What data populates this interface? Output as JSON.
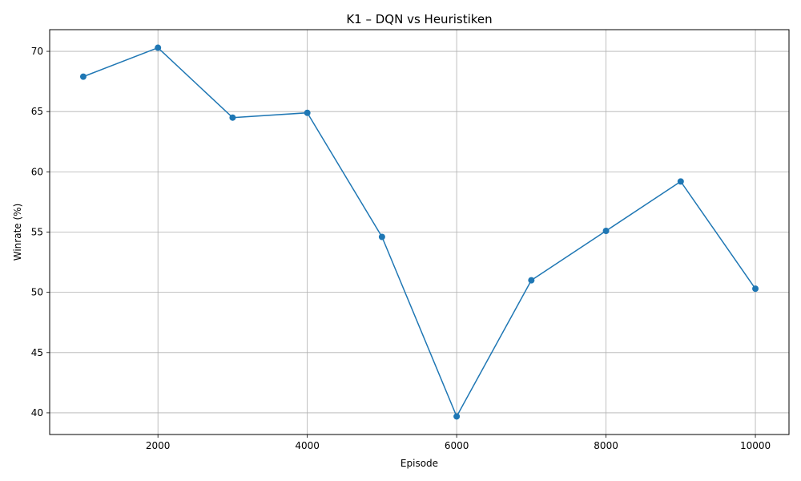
{
  "chart_data": {
    "type": "line",
    "title": "K1 – DQN vs Heuristiken",
    "xlabel": "Episode",
    "ylabel": "Winrate (%)",
    "x": [
      1000,
      2000,
      3000,
      4000,
      5000,
      6000,
      7000,
      8000,
      9000,
      10000
    ],
    "series": [
      {
        "values": [
          67.9,
          70.3,
          64.5,
          64.9,
          54.6,
          39.7,
          51.0,
          55.1,
          59.2,
          50.3
        ],
        "color": "#1f77b4",
        "marker": "circle"
      }
    ],
    "xlim": [
      550,
      10450
    ],
    "ylim": [
      38.2,
      71.8
    ],
    "xticks": [
      2000,
      4000,
      6000,
      8000,
      10000
    ],
    "xtick_labels": [
      "2000",
      "4000",
      "6000",
      "8000",
      "10000"
    ],
    "yticks": [
      40,
      45,
      50,
      55,
      60,
      65,
      70
    ],
    "ytick_labels": [
      "40",
      "45",
      "50",
      "55",
      "60",
      "65",
      "70"
    ],
    "grid": true
  }
}
